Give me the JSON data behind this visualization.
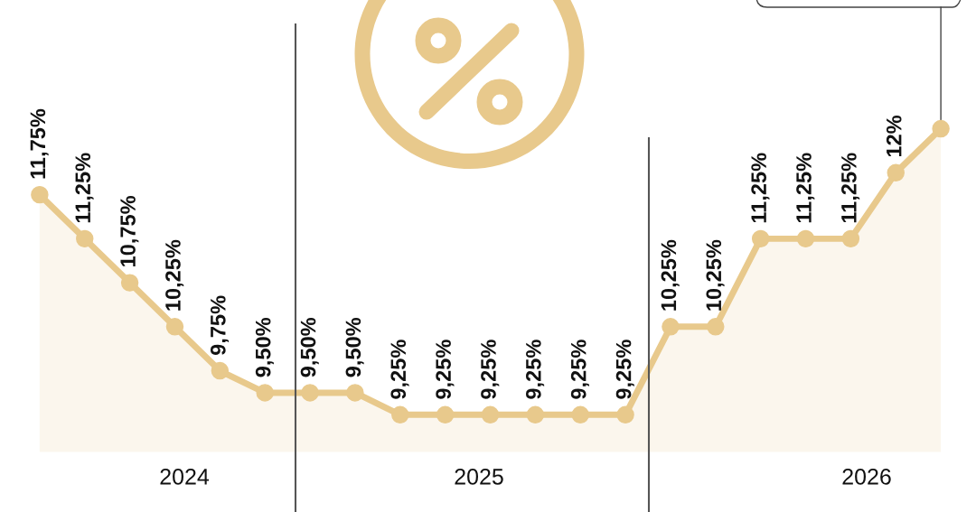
{
  "chart_data": {
    "type": "area",
    "categories": [
      null,
      null,
      null,
      null,
      null,
      null,
      null,
      null,
      null,
      null,
      null,
      null,
      null,
      null,
      null,
      null,
      null,
      null,
      null,
      null,
      null
    ],
    "series": [
      {
        "color": "#e8c98c",
        "values": [
          11.75,
          11.25,
          10.75,
          10.25,
          9.75,
          9.5,
          9.5,
          9.5,
          9.25,
          9.25,
          9.25,
          9.25,
          9.25,
          9.25,
          10.25,
          10.25,
          11.25,
          11.25,
          11.25,
          12,
          12.5
        ],
        "value_labels": [
          "11,75%",
          "11,25%",
          "10,75%",
          "10,25%",
          "9,75%",
          "9,50%",
          "9,50%",
          "9,50%",
          "9,25%",
          "9,25%",
          "9,25%",
          "9,25%",
          "9,25%",
          "9,25%",
          "10,25%",
          "10,25%",
          "11,25%",
          "11,25%",
          "11,25%",
          "12%",
          null
        ]
      }
    ],
    "marker": "circle",
    "line_style": "solid",
    "annotations": [
      "2024",
      "2025",
      "2026"
    ]
  }
}
